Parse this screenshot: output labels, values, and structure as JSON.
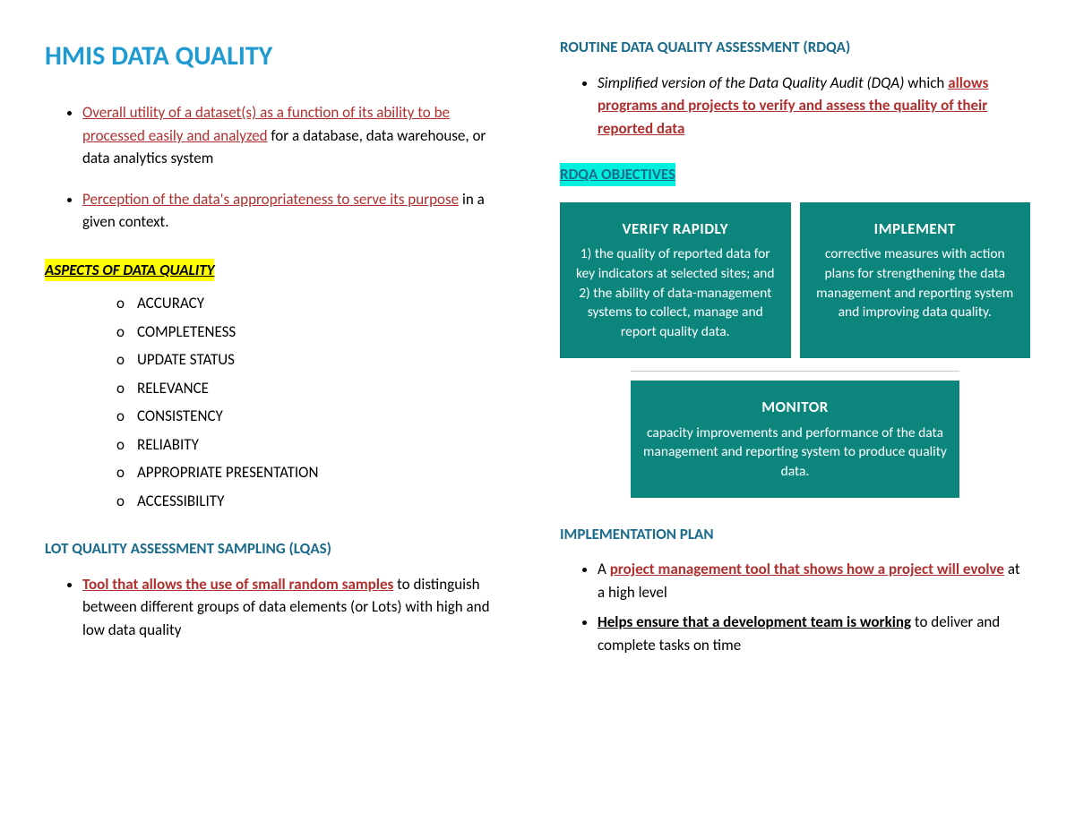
{
  "colors": {
    "title": "#1f9bd1",
    "heading": "#1a6b8c",
    "link": "#b03030",
    "highlight_yellow": "#ffff00",
    "highlight_cyan": "#00f0e0",
    "card_bg": "#0c857c",
    "card_text": "#ffffff",
    "body_text": "#000000",
    "background": "#ffffff"
  },
  "left": {
    "title": "HMIS DATA QUALITY",
    "definitions": [
      {
        "link": "Overall utility of a dataset(s) as a function of its ability to be processed easily and analyzed",
        "rest": " for a database, data warehouse, or data analytics system"
      },
      {
        "link": "Perception of the data's appropriateness to serve its purpose",
        "rest": " in a given context."
      }
    ],
    "aspects_heading": "ASPECTS OF DATA QUALITY",
    "aspects": [
      "ACCURACY",
      "COMPLETENESS",
      "UPDATE STATUS",
      "RELEVANCE",
      "CONSISTENCY",
      "RELIABITY",
      "APPROPRIATE PRESENTATION",
      "ACCESSIBILITY"
    ],
    "lqas_heading": "LOT QUALITY ASSESSMENT SAMPLING (LQAS)",
    "lqas_bullet": {
      "link": "Tool that allows the use of small random samples",
      "rest": " to distinguish between different groups of data elements (or Lots) with high and low data quality"
    }
  },
  "right": {
    "rdqa_heading": "ROUTINE DATA QUALITY ASSESSMENT (RDQA)",
    "rdqa_bullet": {
      "italic": "Simplified version of the Data Quality Audit (DQA)",
      "plain": " which ",
      "link": "allows programs and projects to verify and assess the quality of their reported data"
    },
    "objectives_heading": "RDQA OBJECTIVES",
    "cards": [
      {
        "title": "VERIFY RAPIDLY",
        "body": "1) the quality of reported data for key indicators at selected sites; and 2) the ability of data-management systems to collect, manage and report quality data."
      },
      {
        "title": "IMPLEMENT",
        "body": "corrective measures with action plans for strengthening the data management and reporting system and improving data quality."
      }
    ],
    "card_monitor": {
      "title": "MONITOR",
      "body": "capacity improvements and performance of the data management and reporting system to produce quality data."
    },
    "impl_heading": "IMPLEMENTATION PLAN",
    "impl_bullets": [
      {
        "plain_before": "A ",
        "link": "project management tool that shows how a project will evolve",
        "plain_after": " at a high level"
      },
      {
        "bold_under": "Helps ensure that a development team is working",
        "plain_after": " to deliver and complete tasks on time"
      }
    ]
  }
}
